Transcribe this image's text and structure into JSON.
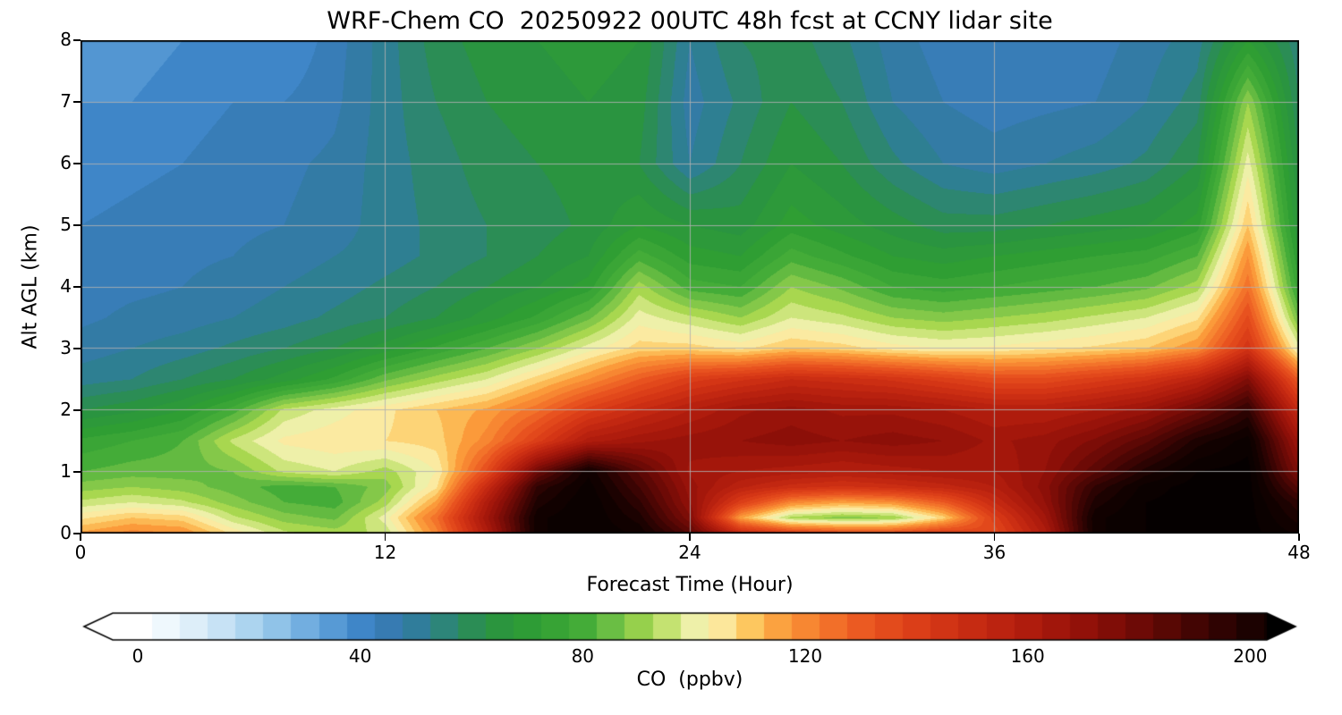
{
  "title": "WRF-Chem CO  20250922 00UTC 48h fcst at CCNY lidar site",
  "chart_data": {
    "type": "heatmap",
    "title": "WRF-Chem CO  20250922 00UTC 48h fcst at CCNY lidar site",
    "xlabel": "Forecast Time (Hour)",
    "ylabel": "Alt AGL (km)",
    "colorbar_label": "CO  (ppbv)",
    "xlim": [
      0,
      48
    ],
    "ylim": [
      0,
      8
    ],
    "xticks": [
      0,
      12,
      24,
      36,
      48
    ],
    "yticks": [
      0,
      1,
      2,
      3,
      4,
      5,
      6,
      7,
      8
    ],
    "colorbar_ticks": [
      0,
      40,
      80,
      120,
      160,
      200
    ],
    "colorbar_range": [
      0,
      210
    ],
    "grid": true,
    "units": "ppbv",
    "x": [
      0,
      2,
      4,
      6,
      8,
      10,
      12,
      14,
      16,
      18,
      20,
      22,
      24,
      26,
      28,
      30,
      32,
      34,
      36,
      38,
      40,
      42,
      44,
      46,
      48
    ],
    "y": [
      0,
      0.25,
      0.5,
      0.75,
      1,
      1.5,
      2,
      2.5,
      3,
      3.5,
      4,
      4.5,
      5,
      6,
      7,
      8
    ],
    "values": [
      [
        115,
        120,
        118,
        105,
        95,
        92,
        95,
        120,
        160,
        205,
        210,
        205,
        185,
        150,
        140,
        135,
        135,
        140,
        135,
        160,
        205,
        210,
        212,
        212,
        205
      ],
      [
        105,
        110,
        108,
        95,
        88,
        85,
        100,
        125,
        165,
        205,
        210,
        200,
        175,
        115,
        92,
        88,
        90,
        108,
        140,
        165,
        205,
        210,
        212,
        212,
        200
      ],
      [
        95,
        98,
        95,
        88,
        82,
        80,
        92,
        115,
        160,
        200,
        210,
        195,
        170,
        140,
        120,
        115,
        118,
        130,
        150,
        170,
        200,
        210,
        212,
        212,
        195
      ],
      [
        88,
        90,
        88,
        84,
        80,
        82,
        88,
        105,
        150,
        195,
        208,
        190,
        168,
        155,
        148,
        145,
        148,
        152,
        158,
        172,
        195,
        208,
        212,
        212,
        185
      ],
      [
        82,
        84,
        84,
        86,
        95,
        98,
        92,
        102,
        135,
        180,
        205,
        185,
        165,
        162,
        160,
        158,
        160,
        162,
        162,
        170,
        185,
        200,
        210,
        212,
        175
      ],
      [
        75,
        78,
        82,
        95,
        103,
        105,
        106,
        108,
        120,
        140,
        160,
        165,
        168,
        170,
        172,
        170,
        172,
        170,
        165,
        168,
        175,
        185,
        200,
        208,
        165
      ],
      [
        62,
        65,
        70,
        80,
        95,
        100,
        105,
        110,
        115,
        125,
        140,
        150,
        158,
        165,
        168,
        165,
        165,
        162,
        158,
        158,
        162,
        168,
        180,
        195,
        150
      ],
      [
        52,
        54,
        58,
        62,
        68,
        75,
        85,
        92,
        98,
        108,
        118,
        130,
        140,
        145,
        150,
        148,
        145,
        140,
        135,
        135,
        140,
        145,
        155,
        175,
        130
      ],
      [
        48,
        50,
        52,
        55,
        58,
        62,
        68,
        75,
        82,
        90,
        100,
        108,
        108,
        105,
        110,
        108,
        104,
        102,
        103,
        105,
        107,
        110,
        118,
        145,
        100
      ],
      [
        45,
        47,
        48,
        50,
        52,
        55,
        58,
        62,
        68,
        75,
        85,
        100,
        95,
        90,
        98,
        95,
        90,
        88,
        90,
        92,
        95,
        98,
        105,
        135,
        85
      ],
      [
        44,
        45,
        46,
        48,
        50,
        52,
        55,
        58,
        62,
        66,
        72,
        92,
        80,
        78,
        90,
        85,
        78,
        76,
        78,
        80,
        82,
        85,
        92,
        125,
        75
      ],
      [
        43,
        44,
        45,
        46,
        48,
        50,
        52,
        55,
        58,
        62,
        66,
        80,
        72,
        70,
        80,
        75,
        70,
        68,
        70,
        72,
        74,
        76,
        82,
        118,
        70
      ],
      [
        42,
        43,
        44,
        45,
        46,
        48,
        52,
        55,
        58,
        60,
        63,
        70,
        66,
        64,
        72,
        68,
        64,
        60,
        60,
        62,
        64,
        66,
        72,
        110,
        66
      ],
      [
        40,
        41,
        42,
        44,
        45,
        47,
        52,
        56,
        60,
        62,
        64,
        62,
        50,
        58,
        66,
        62,
        55,
        50,
        48,
        50,
        52,
        55,
        62,
        100,
        62
      ],
      [
        38,
        38,
        40,
        42,
        42,
        45,
        52,
        58,
        62,
        64,
        66,
        64,
        48,
        55,
        62,
        58,
        50,
        46,
        44,
        45,
        46,
        50,
        56,
        90,
        58
      ],
      [
        36,
        36,
        38,
        40,
        38,
        44,
        52,
        60,
        64,
        66,
        68,
        66,
        50,
        58,
        60,
        55,
        48,
        44,
        42,
        42,
        44,
        48,
        52,
        70,
        55
      ]
    ],
    "colormap": [
      [
        -10,
        "#ffffff"
      ],
      [
        0,
        "#ffffff"
      ],
      [
        8,
        "#e6f3fb"
      ],
      [
        16,
        "#c2e0f4"
      ],
      [
        24,
        "#96c7ea"
      ],
      [
        32,
        "#66a6dc"
      ],
      [
        40,
        "#3f86c8"
      ],
      [
        46,
        "#3579ae"
      ],
      [
        52,
        "#2e7f92"
      ],
      [
        58,
        "#2c8a60"
      ],
      [
        64,
        "#2a9440"
      ],
      [
        72,
        "#2f9e33"
      ],
      [
        80,
        "#44ac38"
      ],
      [
        86,
        "#72c146"
      ],
      [
        92,
        "#a8d74f"
      ],
      [
        97,
        "#d6e987"
      ],
      [
        101,
        "#f6f2b4"
      ],
      [
        105,
        "#fce79b"
      ],
      [
        110,
        "#fdc75f"
      ],
      [
        116,
        "#fb9a3a"
      ],
      [
        124,
        "#f3732a"
      ],
      [
        132,
        "#e8521f"
      ],
      [
        142,
        "#d83916"
      ],
      [
        152,
        "#c22711"
      ],
      [
        162,
        "#aa190c"
      ],
      [
        172,
        "#8c0f08"
      ],
      [
        182,
        "#650905"
      ],
      [
        192,
        "#3b0403"
      ],
      [
        202,
        "#140100"
      ],
      [
        215,
        "#000000"
      ]
    ],
    "gridline_color": "#b0b0b0",
    "frame_color": "#000000"
  }
}
